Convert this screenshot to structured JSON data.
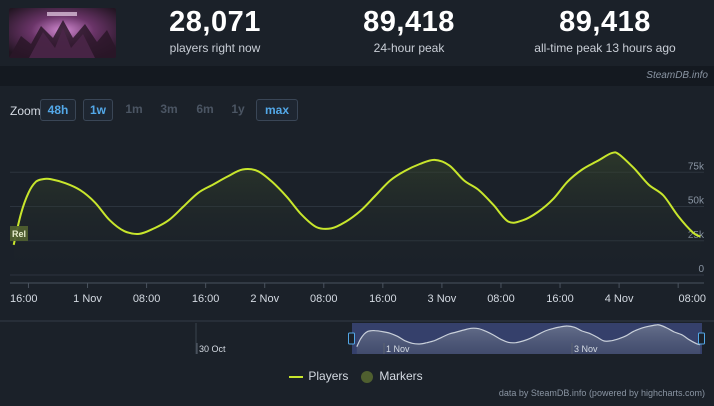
{
  "stats": {
    "current": {
      "value": "28,071",
      "label": "players right now"
    },
    "peak24": {
      "value": "89,418",
      "label": "24-hour peak"
    },
    "alltime": {
      "value": "89,418",
      "label": "all-time peak 13 hours ago"
    }
  },
  "credit_top": "SteamDB.info",
  "zoom": {
    "label": "Zoom",
    "buttons": [
      {
        "text": "48h",
        "active": true
      },
      {
        "text": "1w",
        "active": true
      },
      {
        "text": "1m",
        "active": false
      },
      {
        "text": "3m",
        "active": false
      },
      {
        "text": "6m",
        "active": false
      },
      {
        "text": "1y",
        "active": false
      },
      {
        "text": "max",
        "active": true
      }
    ]
  },
  "legend": {
    "players": "Players",
    "markers": "Markers"
  },
  "credit_bottom": "data by SteamDB.info (powered by highcharts.com)",
  "marker_label": "Rel",
  "colors": {
    "line": "#c8e62c",
    "background": "#1b2129",
    "navigator_mask": "#3a4577"
  },
  "chart_data": {
    "type": "line",
    "series": [
      {
        "name": "Players",
        "points": [
          [
            "2025-10-31 14:00",
            22000
          ],
          [
            "2025-10-31 15:00",
            45000
          ],
          [
            "2025-10-31 16:00",
            60000
          ],
          [
            "2025-10-31 17:00",
            68000
          ],
          [
            "2025-10-31 18:00",
            70000
          ],
          [
            "2025-10-31 19:00",
            70000
          ],
          [
            "2025-10-31 21:00",
            67000
          ],
          [
            "2025-10-31 23:00",
            62000
          ],
          [
            "2025-11-01 01:00",
            53000
          ],
          [
            "2025-11-01 03:00",
            40000
          ],
          [
            "2025-11-01 05:00",
            32000
          ],
          [
            "2025-11-01 07:00",
            30000
          ],
          [
            "2025-11-01 09:00",
            34000
          ],
          [
            "2025-11-01 11:00",
            40000
          ],
          [
            "2025-11-01 13:00",
            50000
          ],
          [
            "2025-11-01 15:00",
            60000
          ],
          [
            "2025-11-01 17:00",
            66000
          ],
          [
            "2025-11-01 19:00",
            72000
          ],
          [
            "2025-11-01 21:00",
            77000
          ],
          [
            "2025-11-01 23:00",
            76000
          ],
          [
            "2025-11-02 01:00",
            68000
          ],
          [
            "2025-11-02 03:00",
            57000
          ],
          [
            "2025-11-02 05:00",
            44000
          ],
          [
            "2025-11-02 07:00",
            35000
          ],
          [
            "2025-11-02 09:00",
            34000
          ],
          [
            "2025-11-02 11:00",
            39000
          ],
          [
            "2025-11-02 13:00",
            47000
          ],
          [
            "2025-11-02 15:00",
            58000
          ],
          [
            "2025-11-02 17:00",
            69000
          ],
          [
            "2025-11-02 19:00",
            76000
          ],
          [
            "2025-11-02 21:00",
            81000
          ],
          [
            "2025-11-02 23:00",
            84000
          ],
          [
            "2025-11-03 01:00",
            80000
          ],
          [
            "2025-11-03 03:00",
            69000
          ],
          [
            "2025-11-03 05:00",
            62000
          ],
          [
            "2025-11-03 07:00",
            51000
          ],
          [
            "2025-11-03 09:00",
            39000
          ],
          [
            "2025-11-03 11:00",
            40000
          ],
          [
            "2025-11-03 13:00",
            46000
          ],
          [
            "2025-11-03 15:00",
            55000
          ],
          [
            "2025-11-03 17:00",
            68000
          ],
          [
            "2025-11-03 19:00",
            77000
          ],
          [
            "2025-11-03 21:00",
            83000
          ],
          [
            "2025-11-03 23:00",
            89000
          ],
          [
            "2025-11-04 00:00",
            88000
          ],
          [
            "2025-11-04 02:00",
            78000
          ],
          [
            "2025-11-04 04:00",
            66000
          ],
          [
            "2025-11-04 06:00",
            58000
          ],
          [
            "2025-11-04 08:00",
            43000
          ],
          [
            "2025-11-04 10:00",
            31000
          ],
          [
            "2025-11-04 11:00",
            28000
          ]
        ]
      }
    ],
    "y_ticks": [
      "0",
      "25k",
      "50k",
      "75k"
    ],
    "ylim": [
      0,
      100000
    ],
    "x_ticks": [
      "16:00",
      "1 Nov",
      "08:00",
      "16:00",
      "2 Nov",
      "08:00",
      "16:00",
      "3 Nov",
      "08:00",
      "16:00",
      "4 Nov",
      "08:00"
    ],
    "navigator_ticks": [
      "30 Oct",
      "1 Nov",
      "3 Nov"
    ],
    "grid": true
  }
}
